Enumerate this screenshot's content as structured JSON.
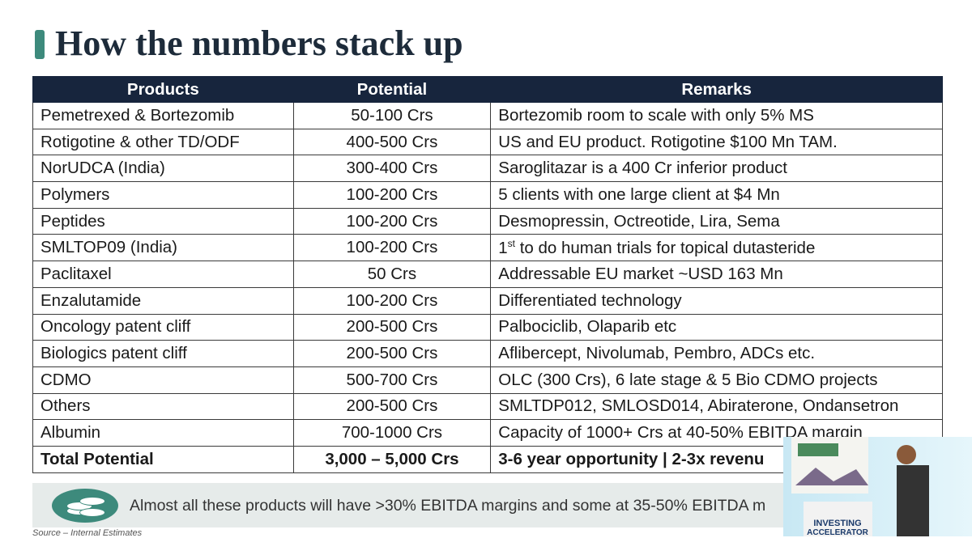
{
  "header": {
    "title": "How the numbers stack up"
  },
  "table": {
    "columns": [
      "Products",
      "Potential",
      "Remarks"
    ],
    "rows": [
      [
        "Pemetrexed & Bortezomib",
        "50-100 Crs",
        "Bortezomib room to scale with only 5% MS"
      ],
      [
        "Rotigotine & other TD/ODF",
        "400-500 Crs",
        "US and EU product. Rotigotine $100 Mn TAM."
      ],
      [
        "NorUDCA (India)",
        "300-400 Crs",
        "Saroglitazar is a 400 Cr inferior product"
      ],
      [
        "Polymers",
        "100-200 Crs",
        "5 clients with one large client at $4 Mn"
      ],
      [
        "Peptides",
        "100-200 Crs",
        "Desmopressin, Octreotide, Lira, Sema"
      ],
      [
        "SMLTOP09 (India)",
        "100-200 Crs",
        [
          "1",
          "st",
          " to do human trials for topical dutasteride"
        ]
      ],
      [
        "Paclitaxel",
        "50 Crs",
        "Addressable EU market ~USD 163 Mn"
      ],
      [
        "Enzalutamide",
        "100-200 Crs",
        "Differentiated technology"
      ],
      [
        "Oncology patent cliff",
        "200-500 Crs",
        "Palbociclib, Olaparib etc"
      ],
      [
        "Biologics patent cliff",
        "200-500 Crs",
        "Aflibercept, Nivolumab, Pembro, ADCs etc."
      ],
      [
        "CDMO",
        "500-700 Crs",
        "OLC (300 Crs), 6 late stage & 5 Bio CDMO projects"
      ],
      [
        "Others",
        "200-500 Crs",
        "SMLTDP012, SMLOSD014, Abiraterone, Ondansetron"
      ],
      [
        "Albumin",
        "700-1000 Crs",
        "Capacity of 1000+ Crs at 40-50% EBITDA margin"
      ],
      [
        "Total Potential",
        "3,000 – 5,000 Crs",
        "3-6 year opportunity | 2-3x revenu"
      ]
    ]
  },
  "note": "Almost all these products will have >30% EBITDA margins and some at 35-50% EBITDA m",
  "source": "Source – Internal Estimates",
  "video": {
    "podium_lines": [
      "INVESTING",
      "ACCELERATOR"
    ]
  }
}
